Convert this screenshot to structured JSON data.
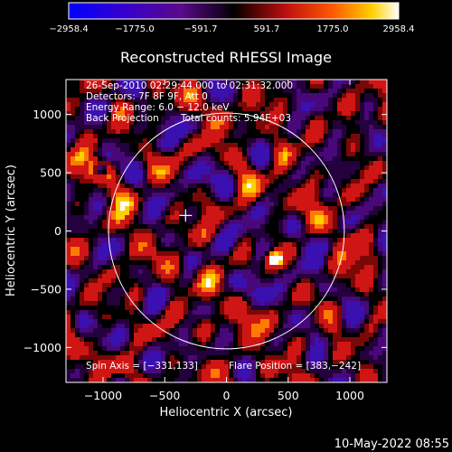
{
  "chart_data": {
    "type": "heatmap",
    "title": "Reconstructed RHESSI Image",
    "xlabel": "Heliocentric X (arcsec)",
    "ylabel": "Heliocentric Y (arcsec)",
    "xlim": [
      -1300,
      1300
    ],
    "ylim": [
      -1300,
      1300
    ],
    "x_ticks": [
      -1000,
      -500,
      0,
      500,
      1000
    ],
    "y_ticks": [
      -1000,
      -500,
      0,
      500,
      1000
    ],
    "x_tick_labels": [
      "−1000",
      "−500",
      "0",
      "500",
      "1000"
    ],
    "y_tick_labels": [
      "−1000",
      "−500",
      "0",
      "500",
      "1000"
    ],
    "colorbar": {
      "min": -2958.4,
      "max": 2958.4,
      "tick_values": [
        -2958.4,
        -1775.0,
        -591.7,
        591.7,
        1775.0,
        2958.4
      ],
      "tick_labels": [
        "−2958.4",
        "−1775.0",
        "−591.7",
        "591.7",
        "1775.0",
        "2958.4"
      ]
    },
    "annotations": {
      "time_range": "26-Sep-2010 02:29:44.000 to 02:31:32.000",
      "detectors": "Detectors: 7F 8F 9F, Att 0",
      "energy_range": "Energy Range: 6.0 − 12.0 keV",
      "method": "Back Projection",
      "total_counts": "Total counts: 5.94E+03",
      "spin_axis": "Spin Axis = [−331,133]",
      "flare_position": "Flare Position = [383,−242]"
    },
    "solar_limb_radius_arcsec": 955,
    "spin_axis": [
      -331,
      133
    ],
    "flare_position": [
      383,
      -242
    ]
  },
  "footer": {
    "timestamp": "10-May-2022 08:55"
  },
  "colors": {
    "background": "#000000",
    "foreground": "#ffffff",
    "colormap_negative": [
      "#0000ff",
      "#3a00c8",
      "#5a0a8c",
      "#000000"
    ],
    "colormap_positive": [
      "#000000",
      "#8c0a0a",
      "#d81a1a",
      "#ff8a00",
      "#ffffff"
    ]
  }
}
